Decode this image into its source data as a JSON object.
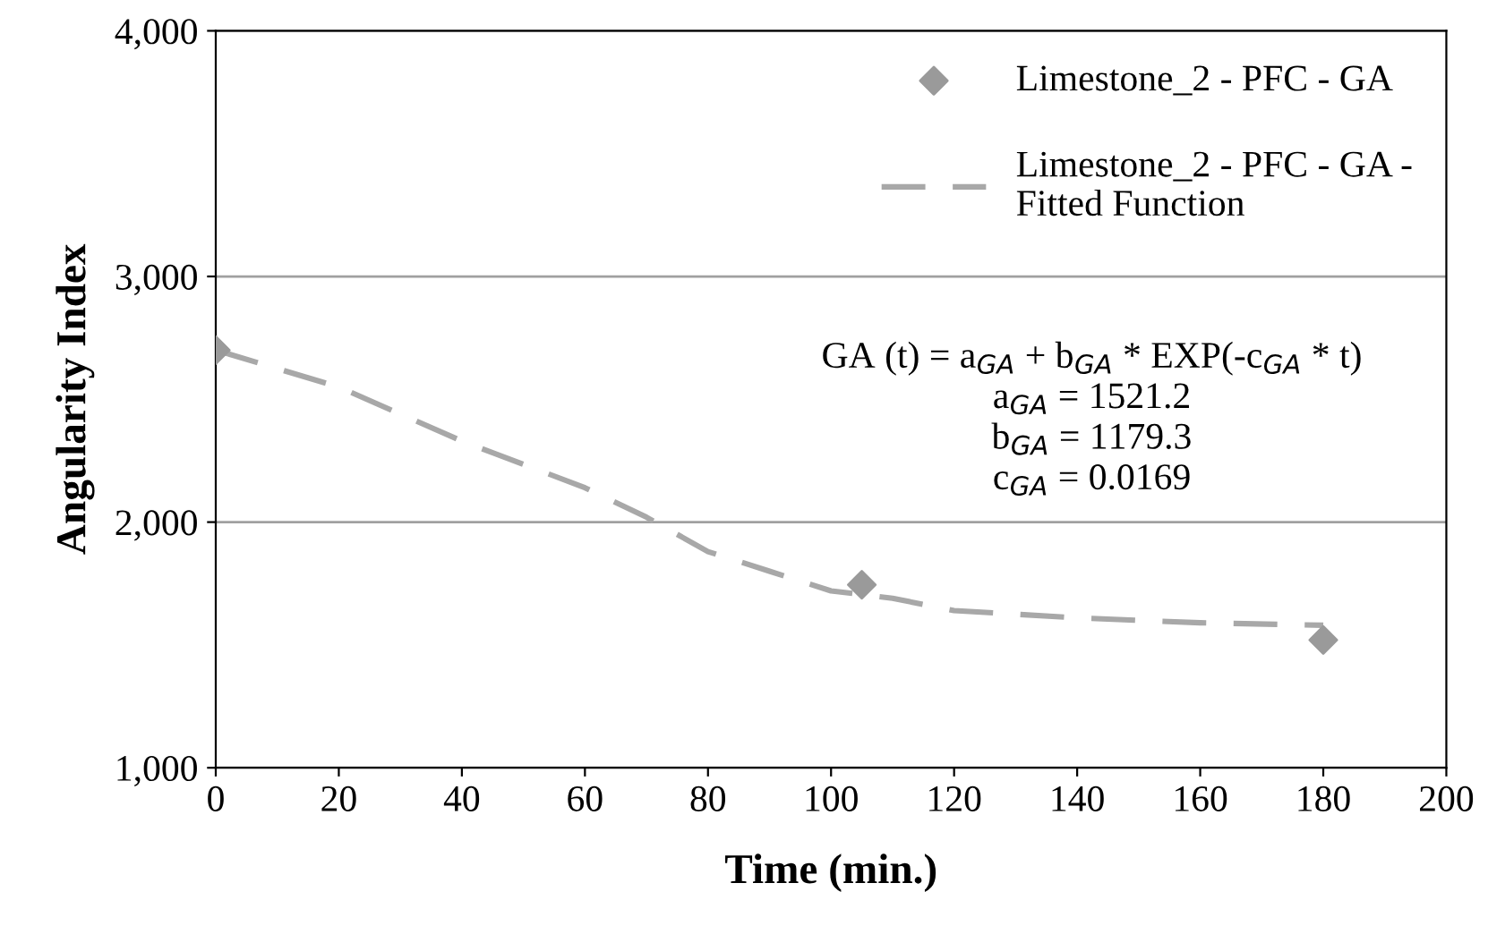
{
  "chart_data": {
    "type": "scatter",
    "xlabel": "Time (min.)",
    "ylabel": "Angularity Index",
    "xlim": [
      0,
      200
    ],
    "xticks": [
      0,
      20,
      40,
      60,
      80,
      100,
      120,
      140,
      160,
      180,
      200
    ],
    "ylim": [
      1000,
      4000
    ],
    "yticks": [
      {
        "value": 1000,
        "label": "1,000"
      },
      {
        "value": 2000,
        "label": "2,000"
      },
      {
        "value": 3000,
        "label": "3,000"
      },
      {
        "value": 4000,
        "label": "4,000"
      }
    ],
    "grid": "y",
    "legend": "top right",
    "series": [
      {
        "name": "Limestone_2 - PFC - GA",
        "marker": "diamond",
        "color": "#9a9a9a",
        "x": [
          0,
          105,
          180
        ],
        "values": [
          2700,
          1745,
          1520
        ]
      },
      {
        "name": "Limestone_2 - PFC - GA - Fitted Function",
        "type": "line",
        "marker": "none",
        "line_style": "dashed",
        "color": "#a8a8a8",
        "x": [
          0,
          20,
          40,
          60,
          70,
          80,
          90,
          100,
          110,
          120,
          140,
          160,
          180
        ],
        "values": [
          2700,
          2550,
          2330,
          2140,
          2020,
          1880,
          1800,
          1720,
          1690,
          1640,
          1610,
          1590,
          1580
        ]
      }
    ],
    "annotations": [
      "GA (t) = a$_{GA}$ + b$_{GA}$ * EXP(-c$_{GA}$ * t)",
      "a$_{GA}$ = 1521.2",
      "b$_{GA}$ = 1179.3",
      "c$_{GA}$ = 0.0169"
    ]
  }
}
